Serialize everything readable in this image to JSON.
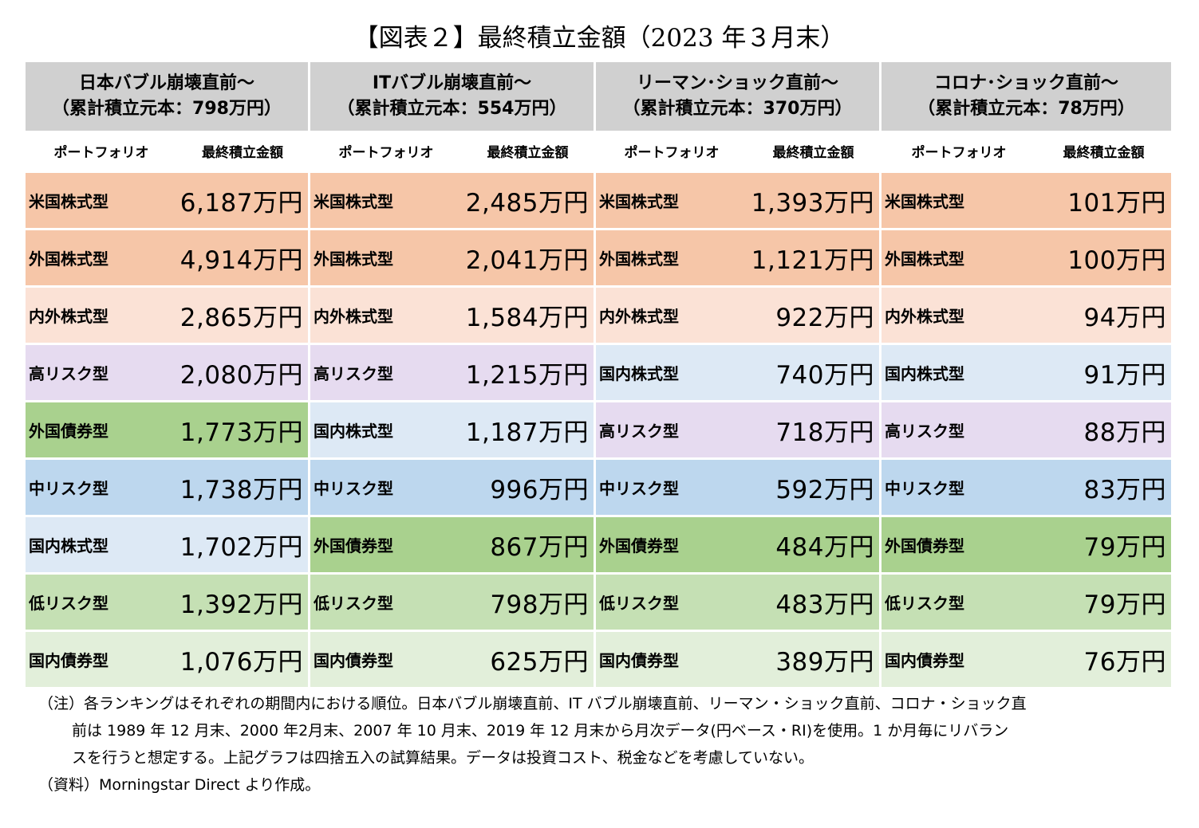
{
  "title": "【図表２】最終積立金額（2023 年３月末）",
  "colors": {
    "us_equity": "#f6c6a8",
    "foreign_equity": "#f6c6a8",
    "domestic_foreign_equity": "#fbe2d6",
    "high_risk": "#e6dbf0",
    "domestic_equity": "#dde9f5",
    "foreign_bond": "#a9d18e",
    "mid_risk": "#bdd7ee",
    "low_risk": "#c5e0b4",
    "domestic_bond": "#e2efda",
    "header": "#d0d0d0"
  },
  "groups": [
    {
      "line1": "日本バブル崩壊直前～",
      "line2": "（累計積立元本：798万円）",
      "col_portfolio": "ポートフォリオ",
      "col_amount": "最終積立金額",
      "rows": [
        {
          "name": "米国株式型",
          "amount": "6,187万円",
          "color": "us_equity"
        },
        {
          "name": "外国株式型",
          "amount": "4,914万円",
          "color": "foreign_equity"
        },
        {
          "name": "内外株式型",
          "amount": "2,865万円",
          "color": "domestic_foreign_equity"
        },
        {
          "name": "高リスク型",
          "amount": "2,080万円",
          "color": "high_risk"
        },
        {
          "name": "外国債券型",
          "amount": "1,773万円",
          "color": "foreign_bond"
        },
        {
          "name": "中リスク型",
          "amount": "1,738万円",
          "color": "mid_risk"
        },
        {
          "name": "国内株式型",
          "amount": "1,702万円",
          "color": "domestic_equity"
        },
        {
          "name": "低リスク型",
          "amount": "1,392万円",
          "color": "low_risk"
        },
        {
          "name": "国内債券型",
          "amount": "1,076万円",
          "color": "domestic_bond"
        }
      ]
    },
    {
      "line1": "ITバブル崩壊直前～",
      "line2": "（累計積立元本：554万円）",
      "col_portfolio": "ポートフォリオ",
      "col_amount": "最終積立金額",
      "rows": [
        {
          "name": "米国株式型",
          "amount": "2,485万円",
          "color": "us_equity"
        },
        {
          "name": "外国株式型",
          "amount": "2,041万円",
          "color": "foreign_equity"
        },
        {
          "name": "内外株式型",
          "amount": "1,584万円",
          "color": "domestic_foreign_equity"
        },
        {
          "name": "高リスク型",
          "amount": "1,215万円",
          "color": "high_risk"
        },
        {
          "name": "国内株式型",
          "amount": "1,187万円",
          "color": "domestic_equity"
        },
        {
          "name": "中リスク型",
          "amount": "996万円",
          "color": "mid_risk"
        },
        {
          "name": "外国債券型",
          "amount": "867万円",
          "color": "foreign_bond"
        },
        {
          "name": "低リスク型",
          "amount": "798万円",
          "color": "low_risk"
        },
        {
          "name": "国内債券型",
          "amount": "625万円",
          "color": "domestic_bond"
        }
      ]
    },
    {
      "line1": "リーマン･ショック直前～",
      "line2": "（累計積立元本：370万円）",
      "col_portfolio": "ポートフォリオ",
      "col_amount": "最終積立金額",
      "rows": [
        {
          "name": "米国株式型",
          "amount": "1,393万円",
          "color": "us_equity"
        },
        {
          "name": "外国株式型",
          "amount": "1,121万円",
          "color": "foreign_equity"
        },
        {
          "name": "内外株式型",
          "amount": "922万円",
          "color": "domestic_foreign_equity"
        },
        {
          "name": "国内株式型",
          "amount": "740万円",
          "color": "domestic_equity"
        },
        {
          "name": "高リスク型",
          "amount": "718万円",
          "color": "high_risk"
        },
        {
          "name": "中リスク型",
          "amount": "592万円",
          "color": "mid_risk"
        },
        {
          "name": "外国債券型",
          "amount": "484万円",
          "color": "foreign_bond"
        },
        {
          "name": "低リスク型",
          "amount": "483万円",
          "color": "low_risk"
        },
        {
          "name": "国内債券型",
          "amount": "389万円",
          "color": "domestic_bond"
        }
      ]
    },
    {
      "line1": "コロナ･ショック直前～",
      "line2": "（累計積立元本：78万円）",
      "col_portfolio": "ポートフォリオ",
      "col_amount": "最終積立金額",
      "rows": [
        {
          "name": "米国株式型",
          "amount": "101万円",
          "color": "us_equity"
        },
        {
          "name": "外国株式型",
          "amount": "100万円",
          "color": "foreign_equity"
        },
        {
          "name": "内外株式型",
          "amount": "94万円",
          "color": "domestic_foreign_equity"
        },
        {
          "name": "国内株式型",
          "amount": "91万円",
          "color": "domestic_equity"
        },
        {
          "name": "高リスク型",
          "amount": "88万円",
          "color": "high_risk"
        },
        {
          "name": "中リスク型",
          "amount": "83万円",
          "color": "mid_risk"
        },
        {
          "name": "外国債券型",
          "amount": "79万円",
          "color": "foreign_bond"
        },
        {
          "name": "低リスク型",
          "amount": "79万円",
          "color": "low_risk"
        },
        {
          "name": "国内債券型",
          "amount": "76万円",
          "color": "domestic_bond"
        }
      ]
    }
  ],
  "notes": {
    "note_line1": "（注）各ランキングはそれぞれの期間内における順位。日本バブル崩壊直前、IT バブル崩壊直前、リーマン・ショック直前、コロナ・ショック直",
    "note_line2": "前は 1989 年 12 月末、2000 年2月末、2007 年 10 月末、2019 年 12 月末から月次データ(円ベース・RI)を使用。1 か月毎にリバラン",
    "note_line3": "スを行うと想定する。上記グラフは四捨五入の試算結果。データは投資コスト、税金などを考慮していない。",
    "source": "（資料）Morningstar Direct より作成。"
  }
}
